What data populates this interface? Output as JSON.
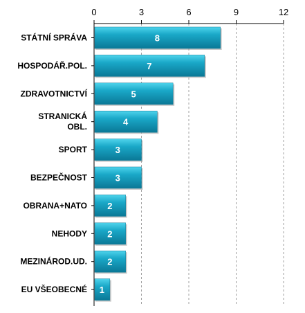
{
  "chart_data": {
    "type": "bar",
    "orientation": "horizontal",
    "categories": [
      "STÁTNÍ SPRÁVA",
      "HOSPODÁŘ.POL.",
      "ZDRAVOTNICTVÍ",
      "STRANICKÁ OBL.",
      "SPORT",
      "BEZPEČNOST",
      "OBRANA+NATO",
      "NEHODY",
      "MEZINÁROD.UD.",
      "EU VŠEOBECNÉ"
    ],
    "category_lines": [
      [
        "STÁTNÍ SPRÁVA"
      ],
      [
        "HOSPODÁŘ.POL."
      ],
      [
        "ZDRAVOTNICTVÍ"
      ],
      [
        "STRANICKÁ",
        "OBL."
      ],
      [
        "SPORT"
      ],
      [
        "BEZPEČNOST"
      ],
      [
        "OBRANA+NATO"
      ],
      [
        "NEHODY"
      ],
      [
        "MEZINÁROD.UD."
      ],
      [
        "EU VŠEOBECNÉ"
      ]
    ],
    "values": [
      8,
      7,
      5,
      4,
      3,
      3,
      2,
      2,
      2,
      1
    ],
    "xlim": [
      0,
      12
    ],
    "xticks": [
      0,
      3,
      6,
      9,
      12
    ],
    "xaxis_position": "top",
    "grid": "vertical dashed",
    "legend": "none",
    "data_labels": true,
    "bar_color": "#1aa8c8",
    "bar_color_light": "#4fd4ec",
    "bar_color_dark": "#0a7896"
  }
}
